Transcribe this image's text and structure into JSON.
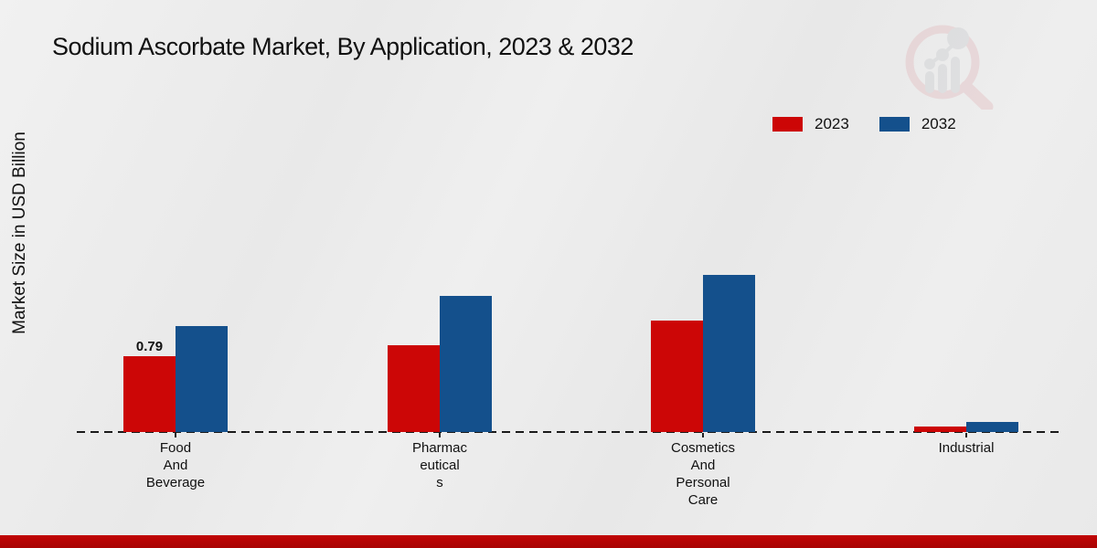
{
  "title": "Sodium Ascorbate Market, By Application, 2023 & 2032",
  "y_axis_label": "Market Size in USD Billion",
  "legend": {
    "position": "top-right",
    "items": [
      {
        "label": "2023",
        "color": "#cc0606"
      },
      {
        "label": "2032",
        "color": "#14508c"
      }
    ]
  },
  "watermark_icon": "magnifier-bar-chart-logo",
  "footer": {
    "color": "#c10505"
  },
  "chart_data": {
    "type": "bar",
    "title": "Sodium Ascorbate Market, By Application, 2023 & 2032",
    "xlabel": "",
    "ylabel": "Market Size in USD Billion",
    "categories": [
      "Food And Beverage",
      "Pharmaceuticals",
      "Cosmetics And Personal Care",
      "Industrial"
    ],
    "category_label_lines": [
      "Food\nAnd\nBeverage",
      "Pharmac\neutical\ns",
      "Cosmetics\nAnd\nPersonal\nCare",
      "Industrial"
    ],
    "series": [
      {
        "name": "2023",
        "color": "#cc0606",
        "values": [
          0.79,
          0.9,
          1.16,
          0.06
        ]
      },
      {
        "name": "2032",
        "color": "#14508c",
        "values": [
          1.1,
          1.42,
          1.64,
          0.1
        ]
      }
    ],
    "data_labels": [
      {
        "series": "2023",
        "category": "Food And Beverage",
        "text": "0.79"
      }
    ],
    "ylim": [
      0,
      1.8
    ],
    "grid": false,
    "baseline_style": "dashed",
    "legend_position": "top-right"
  }
}
